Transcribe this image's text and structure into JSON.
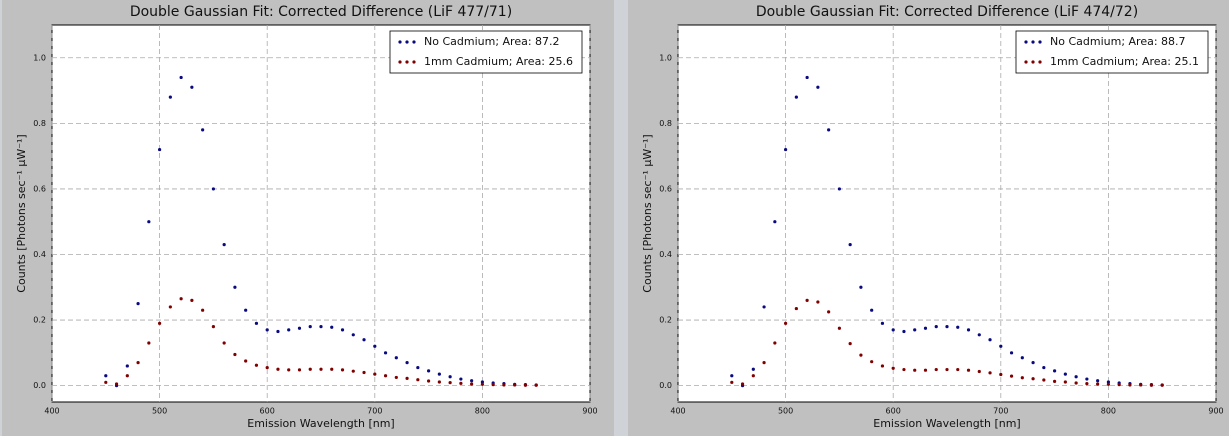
{
  "chart_data": [
    {
      "type": "scatter",
      "title": "Double Gaussian Fit: Corrected Difference (LiF 477/71)",
      "x_label": "Emission Wavelength [nm]",
      "y_label": "Counts [Photons sec⁻¹ μW⁻¹]",
      "x": [
        450,
        460,
        470,
        480,
        490,
        500,
        510,
        520,
        530,
        540,
        550,
        560,
        570,
        580,
        590,
        600,
        610,
        620,
        630,
        640,
        650,
        660,
        670,
        680,
        690,
        700,
        710,
        720,
        730,
        740,
        750,
        760,
        770,
        780,
        790,
        800,
        810,
        820,
        830,
        840,
        850
      ],
      "series": [
        {
          "name": "No Cadmium; Area: 87.2",
          "color": "#0a0a80",
          "values": [
            0.03,
            0.0,
            0.06,
            0.25,
            0.5,
            0.72,
            0.88,
            0.94,
            0.91,
            0.78,
            0.6,
            0.43,
            0.3,
            0.23,
            0.19,
            0.17,
            0.165,
            0.17,
            0.175,
            0.18,
            0.18,
            0.178,
            0.17,
            0.155,
            0.14,
            0.12,
            0.1,
            0.085,
            0.07,
            0.055,
            0.045,
            0.035,
            0.027,
            0.02,
            0.015,
            0.011,
            0.008,
            0.006,
            0.004,
            0.003,
            0.002
          ]
        },
        {
          "name": "1mm Cadmium; Area: 25.6",
          "color": "#800000",
          "values": [
            0.01,
            0.005,
            0.03,
            0.07,
            0.13,
            0.19,
            0.24,
            0.265,
            0.26,
            0.23,
            0.18,
            0.13,
            0.095,
            0.075,
            0.062,
            0.055,
            0.05,
            0.048,
            0.048,
            0.05,
            0.05,
            0.05,
            0.048,
            0.044,
            0.04,
            0.035,
            0.03,
            0.025,
            0.022,
            0.018,
            0.014,
            0.011,
            0.009,
            0.007,
            0.005,
            0.004,
            0.003,
            0.002,
            0.002,
            0.001,
            0.001
          ]
        }
      ],
      "xlim": [
        400,
        900
      ],
      "xticks": [
        400,
        500,
        600,
        700,
        800,
        900
      ],
      "ylim": [
        -0.05,
        1.1
      ],
      "yticks": [
        {
          "value": 0,
          "label": "0.0"
        },
        0.2,
        0.4,
        0.6,
        0.8,
        {
          "value": 1,
          "label": "1.0"
        }
      ],
      "grid": true,
      "legend": "upper right"
    },
    {
      "type": "scatter",
      "title": "Double Gaussian Fit: Corrected Difference (LiF 474/72)",
      "x_label": "Emission Wavelength [nm]",
      "y_label": "Counts [Photons sec⁻¹ μW⁻¹]",
      "x": [
        450,
        460,
        470,
        480,
        490,
        500,
        510,
        520,
        530,
        540,
        550,
        560,
        570,
        580,
        590,
        600,
        610,
        620,
        630,
        640,
        650,
        660,
        670,
        680,
        690,
        700,
        710,
        720,
        730,
        740,
        750,
        760,
        770,
        780,
        790,
        800,
        810,
        820,
        830,
        840,
        850
      ],
      "series": [
        {
          "name": "No Cadmium; Area: 88.7",
          "color": "#0a0a80",
          "values": [
            0.03,
            0.0,
            0.05,
            0.24,
            0.5,
            0.72,
            0.88,
            0.94,
            0.91,
            0.78,
            0.6,
            0.43,
            0.3,
            0.23,
            0.19,
            0.17,
            0.165,
            0.17,
            0.175,
            0.18,
            0.18,
            0.178,
            0.17,
            0.155,
            0.14,
            0.12,
            0.1,
            0.085,
            0.07,
            0.055,
            0.045,
            0.035,
            0.027,
            0.02,
            0.015,
            0.011,
            0.008,
            0.006,
            0.004,
            0.003,
            0.002
          ]
        },
        {
          "name": "1mm Cadmium; Area: 25.1",
          "color": "#800000",
          "values": [
            0.01,
            0.005,
            0.03,
            0.07,
            0.13,
            0.19,
            0.235,
            0.26,
            0.255,
            0.225,
            0.175,
            0.128,
            0.093,
            0.073,
            0.06,
            0.053,
            0.049,
            0.047,
            0.047,
            0.049,
            0.049,
            0.049,
            0.047,
            0.043,
            0.039,
            0.034,
            0.029,
            0.024,
            0.021,
            0.017,
            0.013,
            0.011,
            0.008,
            0.006,
            0.005,
            0.004,
            0.003,
            0.002,
            0.002,
            0.001,
            0.001
          ]
        }
      ],
      "xlim": [
        400,
        900
      ],
      "xticks": [
        400,
        500,
        600,
        700,
        800,
        900
      ],
      "ylim": [
        -0.05,
        1.1
      ],
      "yticks": [
        {
          "value": 0,
          "label": "0.0"
        },
        0.2,
        0.4,
        0.6,
        0.8,
        {
          "value": 1,
          "label": "1.0"
        }
      ],
      "grid": true,
      "legend": "upper right"
    }
  ]
}
